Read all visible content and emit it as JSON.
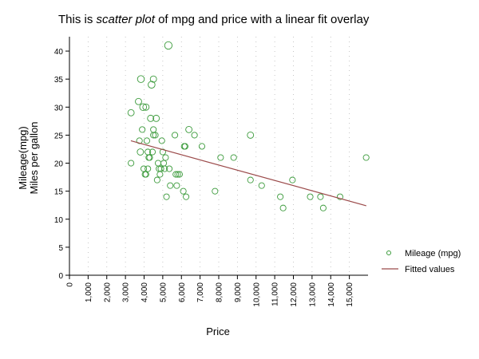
{
  "chart_data": {
    "type": "scatter",
    "title": {
      "prefix": "This is ",
      "emph": "scatter plot",
      "suffix": " of mpg and price with a linear fit overlay"
    },
    "xlabel": "Price",
    "ylabel_line1": "Mileage(mpg)",
    "ylabel_line2": "Miles per gallon",
    "xlim": [
      0,
      16000
    ],
    "ylim": [
      0,
      42
    ],
    "x_ticks": [
      0,
      1000,
      2000,
      3000,
      4000,
      5000,
      6000,
      7000,
      8000,
      9000,
      10000,
      11000,
      12000,
      13000,
      14000,
      15000
    ],
    "x_tick_labels": [
      "0",
      "1,000",
      "2,000",
      "3,000",
      "4,000",
      "5,000",
      "6,000",
      "7,000",
      "8,000",
      "9,000",
      "10,000",
      "11,000",
      "12,000",
      "13,000",
      "14,000",
      "15,000"
    ],
    "y_ticks": [
      0,
      5,
      10,
      15,
      20,
      25,
      30,
      35,
      40
    ],
    "y_tick_labels": [
      "0",
      "5",
      "10",
      "15",
      "20",
      "25",
      "30",
      "35",
      "40"
    ],
    "grid": "vertical dotted",
    "legend_position": "right",
    "colors": {
      "points": "#3a9a3a",
      "fit": "#9b4a4a"
    },
    "series": [
      {
        "name": "Mileage (mpg)",
        "kind": "scatter",
        "x": [
          3300,
          3300,
          3750,
          3700,
          3800,
          3830,
          3900,
          3950,
          3980,
          4050,
          4100,
          4150,
          4200,
          4250,
          4300,
          4350,
          4400,
          4450,
          4500,
          4500,
          4600,
          4650,
          4700,
          4750,
          4800,
          4850,
          4900,
          4950,
          5000,
          5050,
          5100,
          5150,
          5200,
          5300,
          5350,
          5400,
          5650,
          5700,
          5750,
          5800,
          5900,
          6100,
          6150,
          6200,
          6250,
          6400,
          6700,
          7100,
          7800,
          8100,
          8800,
          9700,
          9700,
          10300,
          11300,
          11450,
          11950,
          12900,
          13450,
          13600,
          14500,
          15900,
          4100,
          4200,
          4500
        ],
        "y": [
          29,
          20,
          24,
          31,
          22,
          35,
          26,
          30,
          19,
          18,
          30,
          24,
          22,
          21,
          21,
          28,
          34,
          22,
          26,
          35,
          25,
          28,
          17,
          20,
          19,
          18,
          19,
          24,
          22,
          20,
          19,
          21,
          14,
          41,
          19,
          16,
          25,
          18,
          16,
          18,
          18,
          15,
          23,
          23,
          14,
          26,
          25,
          23,
          15,
          21,
          21,
          25,
          17,
          16,
          14,
          12,
          17,
          14,
          14,
          12,
          14,
          21,
          18,
          19,
          25
        ],
        "size": [
          1.1,
          1.0,
          1.0,
          1.1,
          1.1,
          1.2,
          1.0,
          1.2,
          1.0,
          1.0,
          1.1,
          1.0,
          1.0,
          1.0,
          1.0,
          1.1,
          1.2,
          1.0,
          1.0,
          1.1,
          1.0,
          1.1,
          1.0,
          1.0,
          1.0,
          1.0,
          1.0,
          1.0,
          1.0,
          1.0,
          1.0,
          1.0,
          1.0,
          1.3,
          1.0,
          1.0,
          1.0,
          1.0,
          1.0,
          1.0,
          1.0,
          1.0,
          1.0,
          1.0,
          1.0,
          1.1,
          1.0,
          1.0,
          1.0,
          1.0,
          1.0,
          1.1,
          1.0,
          1.0,
          1.0,
          1.0,
          1.0,
          1.0,
          1.0,
          1.0,
          1.0,
          1.0,
          1.0,
          1.0,
          1.0
        ]
      },
      {
        "name": "Fitted values",
        "kind": "line",
        "x": [
          3291,
          15906
        ],
        "y": [
          24.0,
          12.4
        ]
      }
    ]
  }
}
